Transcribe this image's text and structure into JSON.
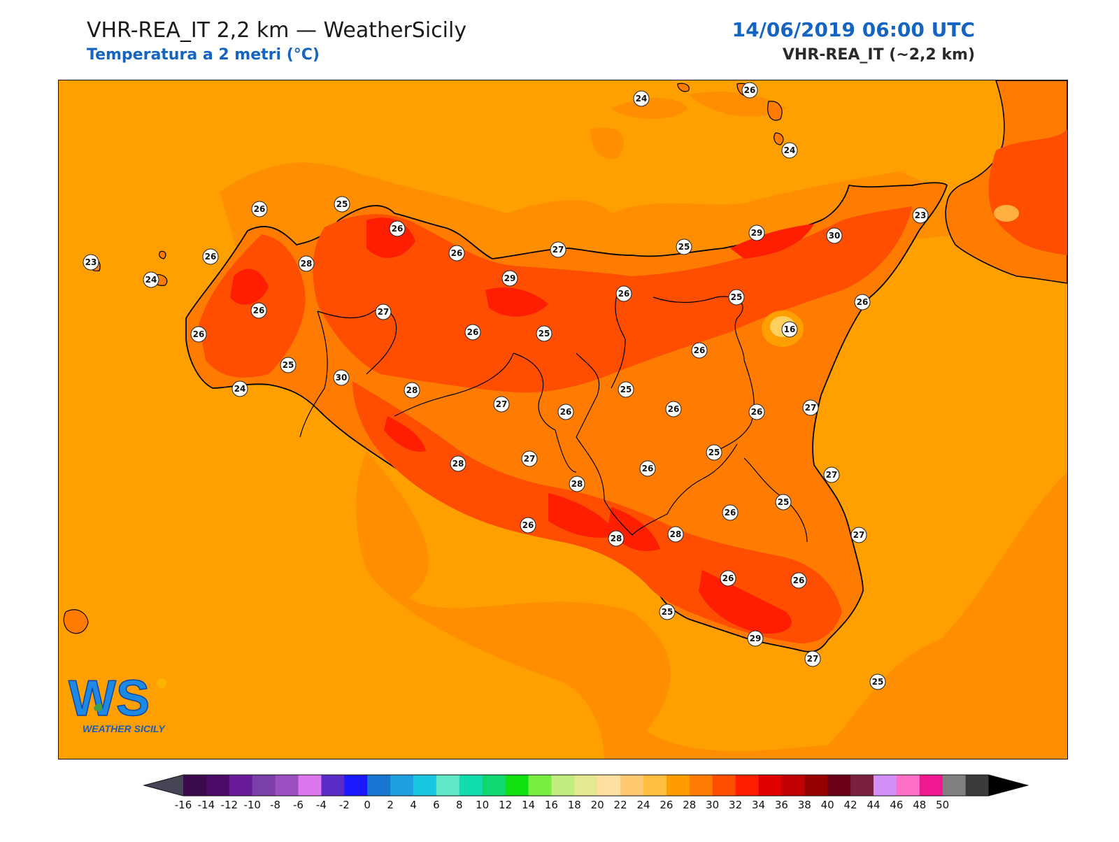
{
  "header": {
    "title": "VHR-REA_IT 2,2 km — WeatherSicily",
    "subtitle": "Temperatura a 2 metri (°C)",
    "datetime": "14/06/2019 06:00 UTC",
    "model": "VHR-REA_IT (~2,2 km)"
  },
  "logo": {
    "text": "WEATHER SICILY",
    "mark": "WS"
  },
  "station_values": [
    {
      "id": "s1",
      "value": "26"
    },
    {
      "id": "s2",
      "value": "25"
    },
    {
      "id": "s3",
      "value": "26"
    },
    {
      "id": "s4",
      "value": "26"
    },
    {
      "id": "s5",
      "value": "27"
    },
    {
      "id": "s6",
      "value": "29"
    },
    {
      "id": "s7",
      "value": "23"
    },
    {
      "id": "s8",
      "value": "26"
    },
    {
      "id": "s9",
      "value": "28"
    },
    {
      "id": "s10",
      "value": "24"
    },
    {
      "id": "s11",
      "value": "26"
    },
    {
      "id": "s12",
      "value": "27"
    },
    {
      "id": "s13",
      "value": "26"
    },
    {
      "id": "s14",
      "value": "25"
    },
    {
      "id": "s15",
      "value": "26"
    },
    {
      "id": "s16",
      "value": "25"
    },
    {
      "id": "s17",
      "value": "25"
    },
    {
      "id": "s18",
      "value": "24"
    },
    {
      "id": "s19",
      "value": "30"
    },
    {
      "id": "s20",
      "value": "28"
    },
    {
      "id": "s21",
      "value": "27"
    },
    {
      "id": "s22",
      "value": "26"
    },
    {
      "id": "s23",
      "value": "25"
    },
    {
      "id": "s24",
      "value": "26"
    },
    {
      "id": "s25",
      "value": "28"
    },
    {
      "id": "s26",
      "value": "27"
    },
    {
      "id": "s27",
      "value": "28"
    },
    {
      "id": "s28",
      "value": "26"
    },
    {
      "id": "s29",
      "value": "28"
    },
    {
      "id": "s30",
      "value": "28"
    },
    {
      "id": "s31",
      "value": "25"
    },
    {
      "id": "s32",
      "value": "26"
    },
    {
      "id": "s33",
      "value": "29"
    },
    {
      "id": "s34",
      "value": "30"
    },
    {
      "id": "s35",
      "value": "25"
    },
    {
      "id": "s36",
      "value": "26"
    },
    {
      "id": "s37",
      "value": "16"
    },
    {
      "id": "s38",
      "value": "26"
    },
    {
      "id": "s39",
      "value": "26"
    },
    {
      "id": "s40",
      "value": "27"
    },
    {
      "id": "s41",
      "value": "26"
    },
    {
      "id": "s42",
      "value": "25"
    },
    {
      "id": "s43",
      "value": "26"
    },
    {
      "id": "s44",
      "value": "27"
    },
    {
      "id": "s45",
      "value": "25"
    },
    {
      "id": "s46",
      "value": "27"
    },
    {
      "id": "s47",
      "value": "26"
    },
    {
      "id": "s48",
      "value": "26"
    },
    {
      "id": "s49",
      "value": "25"
    },
    {
      "id": "s50",
      "value": "29"
    },
    {
      "id": "s51",
      "value": "27"
    },
    {
      "id": "s52",
      "value": "24"
    },
    {
      "id": "s53",
      "value": "26"
    },
    {
      "id": "s54",
      "value": "24"
    },
    {
      "id": "s55",
      "value": "23"
    }
  ],
  "colorbar": {
    "unit": "°C",
    "labels": [
      "-16",
      "-14",
      "-12",
      "-10",
      "-8",
      "-6",
      "-4",
      "-2",
      "0",
      "2",
      "4",
      "6",
      "8",
      "10",
      "12",
      "14",
      "16",
      "18",
      "20",
      "22",
      "24",
      "26",
      "28",
      "30",
      "32",
      "34",
      "36",
      "38",
      "40",
      "42",
      "44",
      "46",
      "48",
      "50"
    ],
    "colors": [
      "#3a0a4a",
      "#4b0a66",
      "#6a1b9a",
      "#7b3fa8",
      "#9c4fc0",
      "#dd77ee",
      "#5b2bc8",
      "#1a1aff",
      "#1976d2",
      "#1fa0e0",
      "#19c8e0",
      "#5ee8c8",
      "#10dcb0",
      "#10d870",
      "#10e010",
      "#78ee40",
      "#c0ec80",
      "#e4e890",
      "#ffe0a0",
      "#ffc870",
      "#ffbe40",
      "#ff9c00",
      "#ff7c00",
      "#ff4e00",
      "#ff1e00",
      "#e00000",
      "#c00000",
      "#960000",
      "#6a0018",
      "#7a2040",
      "#d090f8",
      "#ff70c8",
      "#f01890",
      "#808080",
      "#3a3a3a"
    ],
    "under_color": "#454555",
    "over_color": "#000000"
  },
  "colors": {
    "sea": "#ffa000",
    "land_warm": "#ff7c00",
    "land_hot": "#ff4e00",
    "land_hotter": "#ff1e00",
    "cold_spot": "#ffd060"
  }
}
